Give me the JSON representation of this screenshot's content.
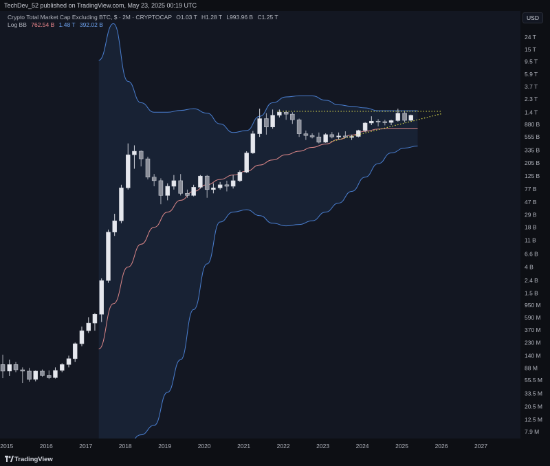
{
  "publisher_line": "TechDev_52 published on TradingView.com, May 23, 2025 00:19 UTC",
  "legend": {
    "title": "Crypto Total Market Cap Excluding BTC, $ · 2M · CRYPTOCAP",
    "open": "O1.03 T",
    "high": "H1.28 T",
    "low": "L993.96 B",
    "close": "C1.25 T",
    "indicator": "Log BB",
    "bb_mid": "762.54 B",
    "bb_upper": "1.48 T",
    "bb_lower": "392.02 B"
  },
  "currency": "USD",
  "brand": "TradingView",
  "colors": {
    "background": "#131722",
    "candle_up": "#d1d4dc",
    "candle_down": "#d1d4dc",
    "bb_upper_lower": "#4a7fd1",
    "bb_mid": "#e0898a",
    "bb_fill": "#1a2437",
    "trendlines": "#d6d64a"
  },
  "chart_data": {
    "type": "candlestick",
    "title": "Crypto Total Market Cap Excluding BTC, $ · 2M · CRYPTOCAP",
    "timeframe": "2M",
    "scale": "log",
    "y_tick_labels": [
      "24 T",
      "15 T",
      "9.5 T",
      "5.9 T",
      "3.7 T",
      "2.3 T",
      "1.4 T",
      "880 B",
      "555 B",
      "335 B",
      "205 B",
      "125 B",
      "77 B",
      "47 B",
      "29 B",
      "18 B",
      "11 B",
      "6.6 B",
      "4 B",
      "2.4 B",
      "1.5 B",
      "950 M",
      "590 M",
      "370 M",
      "230 M",
      "140 M",
      "88 M",
      "55.5 M",
      "33.5 M",
      "20.5 M",
      "12.5 M",
      "7.9 M"
    ],
    "y_tick_values": [
      24000000000000.0,
      15000000000000.0,
      9500000000000.0,
      5900000000000.0,
      3700000000000.0,
      2300000000000.0,
      1400000000000.0,
      880000000000.0,
      555000000000.0,
      335000000000.0,
      205000000000.0,
      125000000000.0,
      77000000000.0,
      47000000000.0,
      29000000000.0,
      18000000000.0,
      11000000000.0,
      6600000000.0,
      4000000000.0,
      2400000000.0,
      1500000000.0,
      950000000.0,
      590000000.0,
      370000000.0,
      230000000.0,
      140000000.0,
      88000000.0,
      55500000.0,
      33500000.0,
      20500000.0,
      12500000.0,
      7900000.0
    ],
    "x_tick_labels": [
      "2015",
      "2016",
      "2017",
      "2018",
      "2019",
      "2020",
      "2021",
      "2022",
      "2023",
      "2024",
      "2025",
      "2026",
      "2027"
    ],
    "x_range": [
      2014.83,
      2028.0
    ],
    "candles": [
      {
        "t": 2014.9,
        "o": 100000000.0,
        "h": 145000000.0,
        "l": 60000000.0,
        "c": 78000000.0
      },
      {
        "t": 2015.07,
        "o": 78000000.0,
        "h": 120000000.0,
        "l": 65000000.0,
        "c": 100000000.0
      },
      {
        "t": 2015.23,
        "o": 100000000.0,
        "h": 110000000.0,
        "l": 75000000.0,
        "c": 82000000.0
      },
      {
        "t": 2015.4,
        "o": 82000000.0,
        "h": 90000000.0,
        "l": 50000000.0,
        "c": 78000000.0
      },
      {
        "t": 2015.57,
        "o": 78000000.0,
        "h": 88000000.0,
        "l": 52000000.0,
        "c": 57000000.0
      },
      {
        "t": 2015.73,
        "o": 57000000.0,
        "h": 80000000.0,
        "l": 53000000.0,
        "c": 78000000.0
      },
      {
        "t": 2015.9,
        "o": 78000000.0,
        "h": 83000000.0,
        "l": 63000000.0,
        "c": 66000000.0
      },
      {
        "t": 2016.07,
        "o": 66000000.0,
        "h": 80000000.0,
        "l": 58000000.0,
        "c": 61000000.0
      },
      {
        "t": 2016.23,
        "o": 61000000.0,
        "h": 90000000.0,
        "l": 59000000.0,
        "c": 80000000.0
      },
      {
        "t": 2016.4,
        "o": 80000000.0,
        "h": 105000000.0,
        "l": 75000000.0,
        "c": 100000000.0
      },
      {
        "t": 2016.57,
        "o": 100000000.0,
        "h": 140000000.0,
        "l": 90000000.0,
        "c": 125000000.0
      },
      {
        "t": 2016.73,
        "o": 125000000.0,
        "h": 230000000.0,
        "l": 110000000.0,
        "c": 220000000.0
      },
      {
        "t": 2016.9,
        "o": 220000000.0,
        "h": 420000000.0,
        "l": 200000000.0,
        "c": 360000000.0
      },
      {
        "t": 2017.07,
        "o": 360000000.0,
        "h": 600000000.0,
        "l": 330000000.0,
        "c": 480000000.0
      },
      {
        "t": 2017.23,
        "o": 480000000.0,
        "h": 700000000.0,
        "l": 360000000.0,
        "c": 670000000.0
      },
      {
        "t": 2017.4,
        "o": 670000000.0,
        "h": 2600000000.0,
        "l": 500000000.0,
        "c": 2400000000.0
      },
      {
        "t": 2017.57,
        "o": 2400000000.0,
        "h": 16500000000.0,
        "l": 2200000000.0,
        "c": 15000000000.0
      },
      {
        "t": 2017.73,
        "o": 15000000000.0,
        "h": 30000000000.0,
        "l": 13000000000.0,
        "c": 23000000000.0
      },
      {
        "t": 2017.9,
        "o": 23000000000.0,
        "h": 90000000000.0,
        "l": 21000000000.0,
        "c": 80000000000.0
      },
      {
        "t": 2018.07,
        "o": 80000000000.0,
        "h": 430000000000.0,
        "l": 75000000000.0,
        "c": 280000000000.0
      },
      {
        "t": 2018.23,
        "o": 280000000000.0,
        "h": 400000000000.0,
        "l": 165000000000.0,
        "c": 320000000000.0
      },
      {
        "t": 2018.4,
        "o": 320000000000.0,
        "h": 330000000000.0,
        "l": 180000000000.0,
        "c": 240000000000.0
      },
      {
        "t": 2018.57,
        "o": 240000000000.0,
        "h": 260000000000.0,
        "l": 110000000000.0,
        "c": 120000000000.0
      },
      {
        "t": 2018.73,
        "o": 120000000000.0,
        "h": 135000000000.0,
        "l": 85000000000.0,
        "c": 105000000000.0
      },
      {
        "t": 2018.9,
        "o": 105000000000.0,
        "h": 115000000000.0,
        "l": 43000000000.0,
        "c": 60000000000.0
      },
      {
        "t": 2019.07,
        "o": 60000000000.0,
        "h": 95000000000.0,
        "l": 50000000000.0,
        "c": 85000000000.0
      },
      {
        "t": 2019.23,
        "o": 85000000000.0,
        "h": 130000000000.0,
        "l": 75000000000.0,
        "c": 105000000000.0
      },
      {
        "t": 2019.4,
        "o": 105000000000.0,
        "h": 135000000000.0,
        "l": 60000000000.0,
        "c": 65000000000.0
      },
      {
        "t": 2019.57,
        "o": 65000000000.0,
        "h": 75000000000.0,
        "l": 55000000000.0,
        "c": 60000000000.0
      },
      {
        "t": 2019.73,
        "o": 60000000000.0,
        "h": 90000000000.0,
        "l": 58000000000.0,
        "c": 82000000000.0
      },
      {
        "t": 2019.9,
        "o": 82000000000.0,
        "h": 130000000000.0,
        "l": 78000000000.0,
        "c": 125000000000.0
      },
      {
        "t": 2020.07,
        "o": 125000000000.0,
        "h": 130000000000.0,
        "l": 55000000000.0,
        "c": 75000000000.0
      },
      {
        "t": 2020.23,
        "o": 75000000000.0,
        "h": 95000000000.0,
        "l": 65000000000.0,
        "c": 80000000000.0
      },
      {
        "t": 2020.4,
        "o": 80000000000.0,
        "h": 100000000000.0,
        "l": 75000000000.0,
        "c": 90000000000.0
      },
      {
        "t": 2020.57,
        "o": 90000000000.0,
        "h": 105000000000.0,
        "l": 70000000000.0,
        "c": 85000000000.0
      },
      {
        "t": 2020.73,
        "o": 85000000000.0,
        "h": 130000000000.0,
        "l": 78000000000.0,
        "c": 105000000000.0
      },
      {
        "t": 2020.9,
        "o": 105000000000.0,
        "h": 155000000000.0,
        "l": 100000000000.0,
        "c": 145000000000.0
      },
      {
        "t": 2021.07,
        "o": 145000000000.0,
        "h": 320000000000.0,
        "l": 140000000000.0,
        "c": 300000000000.0
      },
      {
        "t": 2021.23,
        "o": 300000000000.0,
        "h": 690000000000.0,
        "l": 290000000000.0,
        "c": 620000000000.0
      },
      {
        "t": 2021.4,
        "o": 620000000000.0,
        "h": 1600000000000.0,
        "l": 550000000000.0,
        "c": 1100000000000.0
      },
      {
        "t": 2021.57,
        "o": 1100000000000.0,
        "h": 1350000000000.0,
        "l": 600000000000.0,
        "c": 800000000000.0
      },
      {
        "t": 2021.73,
        "o": 800000000000.0,
        "h": 1550000000000.0,
        "l": 750000000000.0,
        "c": 1250000000000.0
      },
      {
        "t": 2021.9,
        "o": 1250000000000.0,
        "h": 1550000000000.0,
        "l": 1150000000000.0,
        "c": 1400000000000.0
      },
      {
        "t": 2022.07,
        "o": 1400000000000.0,
        "h": 1500000000000.0,
        "l": 1050000000000.0,
        "c": 1300000000000.0
      },
      {
        "t": 2022.23,
        "o": 1300000000000.0,
        "h": 1400000000000.0,
        "l": 900000000000.0,
        "c": 1050000000000.0
      },
      {
        "t": 2022.4,
        "o": 1050000000000.0,
        "h": 1100000000000.0,
        "l": 550000000000.0,
        "c": 620000000000.0
      },
      {
        "t": 2022.57,
        "o": 620000000000.0,
        "h": 700000000000.0,
        "l": 490000000000.0,
        "c": 580000000000.0
      },
      {
        "t": 2022.73,
        "o": 580000000000.0,
        "h": 630000000000.0,
        "l": 520000000000.0,
        "c": 550000000000.0
      },
      {
        "t": 2022.9,
        "o": 550000000000.0,
        "h": 650000000000.0,
        "l": 430000000000.0,
        "c": 450000000000.0
      },
      {
        "t": 2023.07,
        "o": 450000000000.0,
        "h": 630000000000.0,
        "l": 440000000000.0,
        "c": 600000000000.0
      },
      {
        "t": 2023.23,
        "o": 600000000000.0,
        "h": 660000000000.0,
        "l": 520000000000.0,
        "c": 550000000000.0
      },
      {
        "t": 2023.4,
        "o": 550000000000.0,
        "h": 650000000000.0,
        "l": 500000000000.0,
        "c": 570000000000.0
      },
      {
        "t": 2023.57,
        "o": 570000000000.0,
        "h": 680000000000.0,
        "l": 530000000000.0,
        "c": 550000000000.0
      },
      {
        "t": 2023.73,
        "o": 550000000000.0,
        "h": 600000000000.0,
        "l": 490000000000.0,
        "c": 560000000000.0
      },
      {
        "t": 2023.9,
        "o": 560000000000.0,
        "h": 720000000000.0,
        "l": 540000000000.0,
        "c": 700000000000.0
      },
      {
        "t": 2024.07,
        "o": 700000000000.0,
        "h": 960000000000.0,
        "l": 660000000000.0,
        "c": 930000000000.0
      },
      {
        "t": 2024.23,
        "o": 930000000000.0,
        "h": 1200000000000.0,
        "l": 860000000000.0,
        "c": 1000000000000.0
      },
      {
        "t": 2024.4,
        "o": 1000000000000.0,
        "h": 1080000000000.0,
        "l": 820000000000.0,
        "c": 980000000000.0
      },
      {
        "t": 2024.57,
        "o": 980000000000.0,
        "h": 1050000000000.0,
        "l": 850000000000.0,
        "c": 950000000000.0
      },
      {
        "t": 2024.73,
        "o": 950000000000.0,
        "h": 1050000000000.0,
        "l": 860000000000.0,
        "c": 1020000000000.0
      },
      {
        "t": 2024.9,
        "o": 1020000000000.0,
        "h": 1600000000000.0,
        "l": 980000000000.0,
        "c": 1350000000000.0
      },
      {
        "t": 2025.07,
        "o": 1350000000000.0,
        "h": 1450000000000.0,
        "l": 950000000000.0,
        "c": 1030000000000.0
      },
      {
        "t": 2025.23,
        "o": 1030000000000.0,
        "h": 1280000000000.0,
        "l": 990000000000.0,
        "c": 1250000000000.0
      }
    ],
    "bollinger": {
      "name": "Log BB",
      "t": [
        2017.33,
        2017.7,
        2018.07,
        2018.4,
        2018.73,
        2019.07,
        2019.4,
        2019.73,
        2020.07,
        2020.4,
        2020.73,
        2021.07,
        2021.4,
        2021.73,
        2022.07,
        2022.4,
        2022.73,
        2023.07,
        2023.4,
        2023.73,
        2024.07,
        2024.4,
        2024.73,
        2025.07,
        2025.4
      ],
      "mid": [
        180000000.0,
        1000000000.0,
        4000000000.0,
        9500000000.0,
        18000000000.0,
        32000000000.0,
        50000000000.0,
        70000000000.0,
        90000000000.0,
        110000000000.0,
        130000000000.0,
        150000000000.0,
        190000000000.0,
        230000000000.0,
        280000000000.0,
        320000000000.0,
        370000000000.0,
        420000000000.0,
        500000000000.0,
        590000000000.0,
        680000000000.0,
        740000000000.0,
        760000000000.0,
        760000000000.0,
        762000000000.0
      ],
      "upper": [
        10000000000000.0,
        40000000000000.0,
        4500000000000.0,
        2000000000000.0,
        1400000000000.0,
        1400000000000.0,
        1500000000000.0,
        1600000000000.0,
        1350000000000.0,
        900000000000.0,
        650000000000.0,
        700000000000.0,
        1200000000000.0,
        2000000000000.0,
        2500000000000.0,
        2600000000000.0,
        2600000000000.0,
        2200000000000.0,
        1850000000000.0,
        1750000000000.0,
        1650000000000.0,
        1480000000000.0,
        1480000000000.0,
        1480000000000.0,
        1480000000000.0
      ],
      "lower": [
        6000000.0,
        3500000.0,
        5000000.0,
        7000000.0,
        10000000.0,
        35000000.0,
        120000000.0,
        800000000.0,
        4500000000.0,
        22000000000.0,
        32000000000.0,
        35000000000.0,
        28000000000.0,
        21000000000.0,
        19000000000.0,
        20000000000.0,
        23000000000.0,
        32000000000.0,
        45000000000.0,
        70000000000.0,
        120000000000.0,
        200000000000.0,
        300000000000.0,
        360000000000.0,
        390000000000.0
      ]
    },
    "trendlines": [
      {
        "style": "dotted",
        "t": [
          2021.85,
          2026.0
        ],
        "v": [
          1450000000000.0,
          1450000000000.0
        ]
      },
      {
        "style": "dotted",
        "t": [
          2023.2,
          2026.0
        ],
        "v": [
          460000000000.0,
          1320000000000.0
        ]
      }
    ]
  }
}
